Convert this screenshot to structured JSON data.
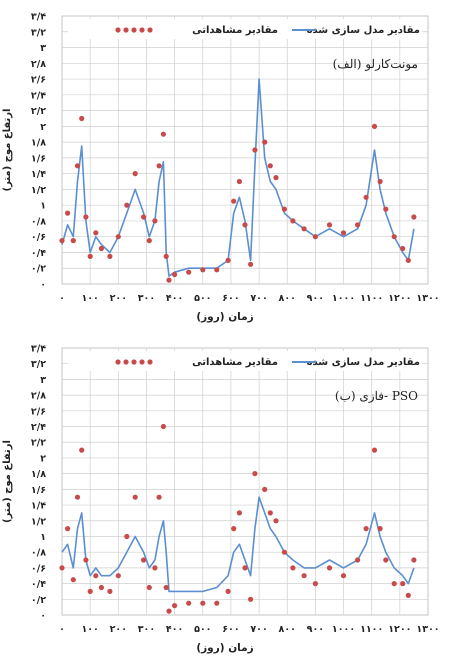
{
  "chart_data": [
    {
      "type": "line",
      "title": "(الف) مونت‌کارلو",
      "xlabel": "زمان (روز)",
      "ylabel": "ارتفاع موج (متر)",
      "xlim": [
        0,
        1300
      ],
      "ylim": [
        0,
        3.4
      ],
      "grid": true,
      "legend_position": "top",
      "x_ticks": [
        "۰",
        "۱۰۰",
        "۲۰۰",
        "۳۰۰",
        "۴۰۰",
        "۵۰۰",
        "۶۰۰",
        "۷۰۰",
        "۸۰۰",
        "۹۰۰",
        "۱۰۰۰",
        "۱۱۰۰",
        "۱۲۰۰",
        "۱۳۰۰"
      ],
      "y_ticks": [
        "۰",
        "۰/۲",
        "۰/۴",
        "۰/۶",
        "۰/۸",
        "۱",
        "۱/۲",
        "۱/۴",
        "۱/۶",
        "۱/۸",
        "۲",
        "۲/۲",
        "۲/۴",
        "۲/۶",
        "۲/۸",
        "۳",
        "۳/۲",
        "۳/۴"
      ],
      "series": [
        {
          "name": "مقادیر مدل سازی شده",
          "type": "line",
          "color": "#5b8fd0",
          "x": [
            0,
            20,
            40,
            55,
            70,
            85,
            100,
            120,
            140,
            170,
            200,
            230,
            260,
            290,
            310,
            330,
            345,
            360,
            370,
            380,
            400,
            450,
            500,
            550,
            590,
            610,
            630,
            650,
            670,
            685,
            700,
            720,
            740,
            760,
            790,
            820,
            860,
            900,
            950,
            1000,
            1050,
            1080,
            1110,
            1130,
            1150,
            1180,
            1210,
            1230,
            1250
          ],
          "y": [
            0.5,
            0.75,
            0.6,
            1.3,
            1.75,
            0.8,
            0.4,
            0.6,
            0.5,
            0.4,
            0.6,
            0.9,
            1.2,
            0.9,
            0.6,
            0.8,
            1.3,
            1.55,
            0.4,
            0.1,
            0.15,
            0.2,
            0.2,
            0.2,
            0.3,
            0.9,
            1.1,
            0.8,
            0.3,
            1.5,
            2.6,
            1.6,
            1.3,
            1.2,
            0.9,
            0.8,
            0.7,
            0.6,
            0.7,
            0.6,
            0.7,
            1.0,
            1.7,
            1.2,
            0.9,
            0.6,
            0.4,
            0.3,
            0.7
          ]
        },
        {
          "name": "مقادیر مشاهداتی",
          "type": "scatter",
          "color": "#c84b4b",
          "x": [
            0,
            20,
            40,
            55,
            70,
            85,
            100,
            120,
            140,
            170,
            200,
            230,
            260,
            290,
            310,
            330,
            345,
            360,
            370,
            380,
            400,
            450,
            500,
            550,
            590,
            610,
            630,
            650,
            670,
            685,
            700,
            720,
            740,
            760,
            790,
            820,
            860,
            900,
            950,
            1000,
            1050,
            1080,
            1110,
            1130,
            1150,
            1180,
            1210,
            1230,
            1250
          ],
          "y": [
            0.55,
            0.9,
            0.55,
            1.5,
            2.1,
            0.85,
            0.35,
            0.65,
            0.45,
            0.35,
            0.6,
            1.0,
            1.4,
            0.85,
            0.55,
            0.8,
            1.5,
            1.9,
            0.35,
            0.05,
            0.12,
            0.15,
            0.18,
            0.18,
            0.3,
            1.05,
            1.3,
            0.75,
            0.25,
            1.7,
            3.2,
            1.8,
            1.5,
            1.35,
            0.95,
            0.8,
            0.7,
            0.6,
            0.75,
            0.65,
            0.75,
            1.1,
            2.0,
            1.3,
            0.95,
            0.6,
            0.45,
            0.3,
            0.85
          ]
        }
      ]
    },
    {
      "type": "line",
      "title": "(ب) فازی- PSO",
      "xlabel": "زمان (روز)",
      "ylabel": "ارتفاع موج (متر)",
      "xlim": [
        0,
        1300
      ],
      "ylim": [
        0,
        3.4
      ],
      "grid": true,
      "legend_position": "top",
      "x_ticks": [
        "۰",
        "۱۰۰",
        "۲۰۰",
        "۳۰۰",
        "۴۰۰",
        "۵۰۰",
        "۶۰۰",
        "۷۰۰",
        "۸۰۰",
        "۹۰۰",
        "۱۰۰۰",
        "۱۱۰۰",
        "۱۲۰۰",
        "۱۳۰۰"
      ],
      "y_ticks": [
        "۰",
        "۰/۲",
        "۰/۴",
        "۰/۶",
        "۰/۸",
        "۱",
        "۱/۲",
        "۱/۴",
        "۱/۶",
        "۱/۸",
        "۲",
        "۲/۲",
        "۲/۴",
        "۲/۶",
        "۲/۸",
        "۳",
        "۳/۲",
        "۳/۴"
      ],
      "series": [
        {
          "name": "مقادیر مدل سازی شده",
          "type": "line",
          "color": "#5b8fd0",
          "x": [
            0,
            20,
            40,
            55,
            70,
            85,
            100,
            120,
            140,
            170,
            200,
            230,
            260,
            290,
            310,
            330,
            345,
            360,
            370,
            380,
            400,
            450,
            500,
            550,
            590,
            610,
            630,
            650,
            670,
            685,
            700,
            720,
            740,
            760,
            790,
            820,
            860,
            900,
            950,
            1000,
            1050,
            1080,
            1110,
            1130,
            1150,
            1180,
            1210,
            1230,
            1250
          ],
          "y": [
            0.8,
            0.9,
            0.6,
            1.1,
            1.3,
            0.7,
            0.5,
            0.6,
            0.5,
            0.5,
            0.6,
            0.8,
            1.0,
            0.8,
            0.6,
            0.7,
            1.0,
            1.2,
            0.8,
            0.3,
            0.3,
            0.3,
            0.3,
            0.35,
            0.5,
            0.8,
            0.9,
            0.7,
            0.5,
            1.1,
            1.5,
            1.3,
            1.1,
            1.0,
            0.8,
            0.7,
            0.6,
            0.6,
            0.7,
            0.6,
            0.7,
            0.9,
            1.3,
            1.0,
            0.8,
            0.6,
            0.5,
            0.4,
            0.6
          ]
        },
        {
          "name": "مقادیر مشاهداتی",
          "type": "scatter",
          "color": "#c84b4b",
          "x": [
            0,
            20,
            40,
            55,
            70,
            85,
            100,
            120,
            140,
            170,
            200,
            230,
            260,
            290,
            310,
            330,
            345,
            360,
            370,
            380,
            400,
            450,
            500,
            550,
            590,
            610,
            630,
            650,
            670,
            685,
            700,
            720,
            740,
            760,
            790,
            820,
            860,
            900,
            950,
            1000,
            1050,
            1080,
            1110,
            1130,
            1150,
            1180,
            1210,
            1230,
            1250
          ],
          "y": [
            0.6,
            1.1,
            0.45,
            1.5,
            2.1,
            0.7,
            0.3,
            0.5,
            0.35,
            0.3,
            0.5,
            1.0,
            1.5,
            0.7,
            0.35,
            0.6,
            1.5,
            2.4,
            0.35,
            0.05,
            0.12,
            0.15,
            0.15,
            0.15,
            0.3,
            1.1,
            1.3,
            0.6,
            0.2,
            1.8,
            3.3,
            1.6,
            1.3,
            1.2,
            0.8,
            0.6,
            0.5,
            0.4,
            0.6,
            0.5,
            0.7,
            1.1,
            2.1,
            1.1,
            0.7,
            0.4,
            0.4,
            0.25,
            0.7
          ]
        }
      ]
    }
  ]
}
